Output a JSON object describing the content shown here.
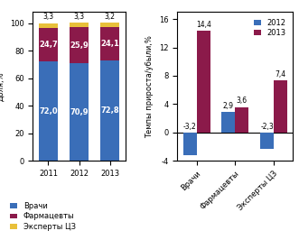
{
  "chart_data": [
    {
      "type": "bar",
      "stacked": true,
      "categories": [
        "2011",
        "2012",
        "2013"
      ],
      "series": [
        {
          "name": "Врачи",
          "color": "#3a6eb8",
          "values": [
            72.0,
            70.9,
            72.8
          ],
          "value_labels": [
            "72,0",
            "70,9",
            "72,8"
          ]
        },
        {
          "name": "Фармацевты",
          "color": "#8b1a4a",
          "values": [
            24.7,
            25.9,
            24.1
          ],
          "value_labels": [
            "24,7",
            "25,9",
            "24,1"
          ]
        },
        {
          "name": "Эксперты ЦЗ",
          "color": "#e8c03a",
          "values": [
            3.3,
            3.3,
            3.2
          ],
          "value_labels": [
            "3,3",
            "3,3",
            "3,2"
          ]
        }
      ],
      "y_label": "Доля,%",
      "ylim": [
        0,
        108
      ],
      "yticks": [
        0,
        20,
        40,
        60,
        80,
        100
      ],
      "data_labels": true,
      "legend": "lower left"
    },
    {
      "type": "bar",
      "categories": [
        "Врачи",
        "Фармацевты",
        "Эксперты ЦЗ"
      ],
      "series": [
        {
          "name": "2012",
          "color": "#3a6eb8",
          "values": [
            -3.2,
            2.9,
            -2.3
          ],
          "value_labels": [
            "-3,2",
            "2,9",
            "-2,3"
          ]
        },
        {
          "name": "2013",
          "color": "#8b1a4a",
          "values": [
            14.4,
            3.6,
            7.4
          ],
          "value_labels": [
            "14,4",
            "3,6",
            "7,4"
          ]
        }
      ],
      "y_label": "Темпы прироста/убыли,%",
      "ylim": [
        -4,
        17
      ],
      "yticks": [
        -4,
        0,
        4,
        8,
        12,
        16
      ],
      "data_labels": true,
      "legend": "upper right"
    }
  ]
}
